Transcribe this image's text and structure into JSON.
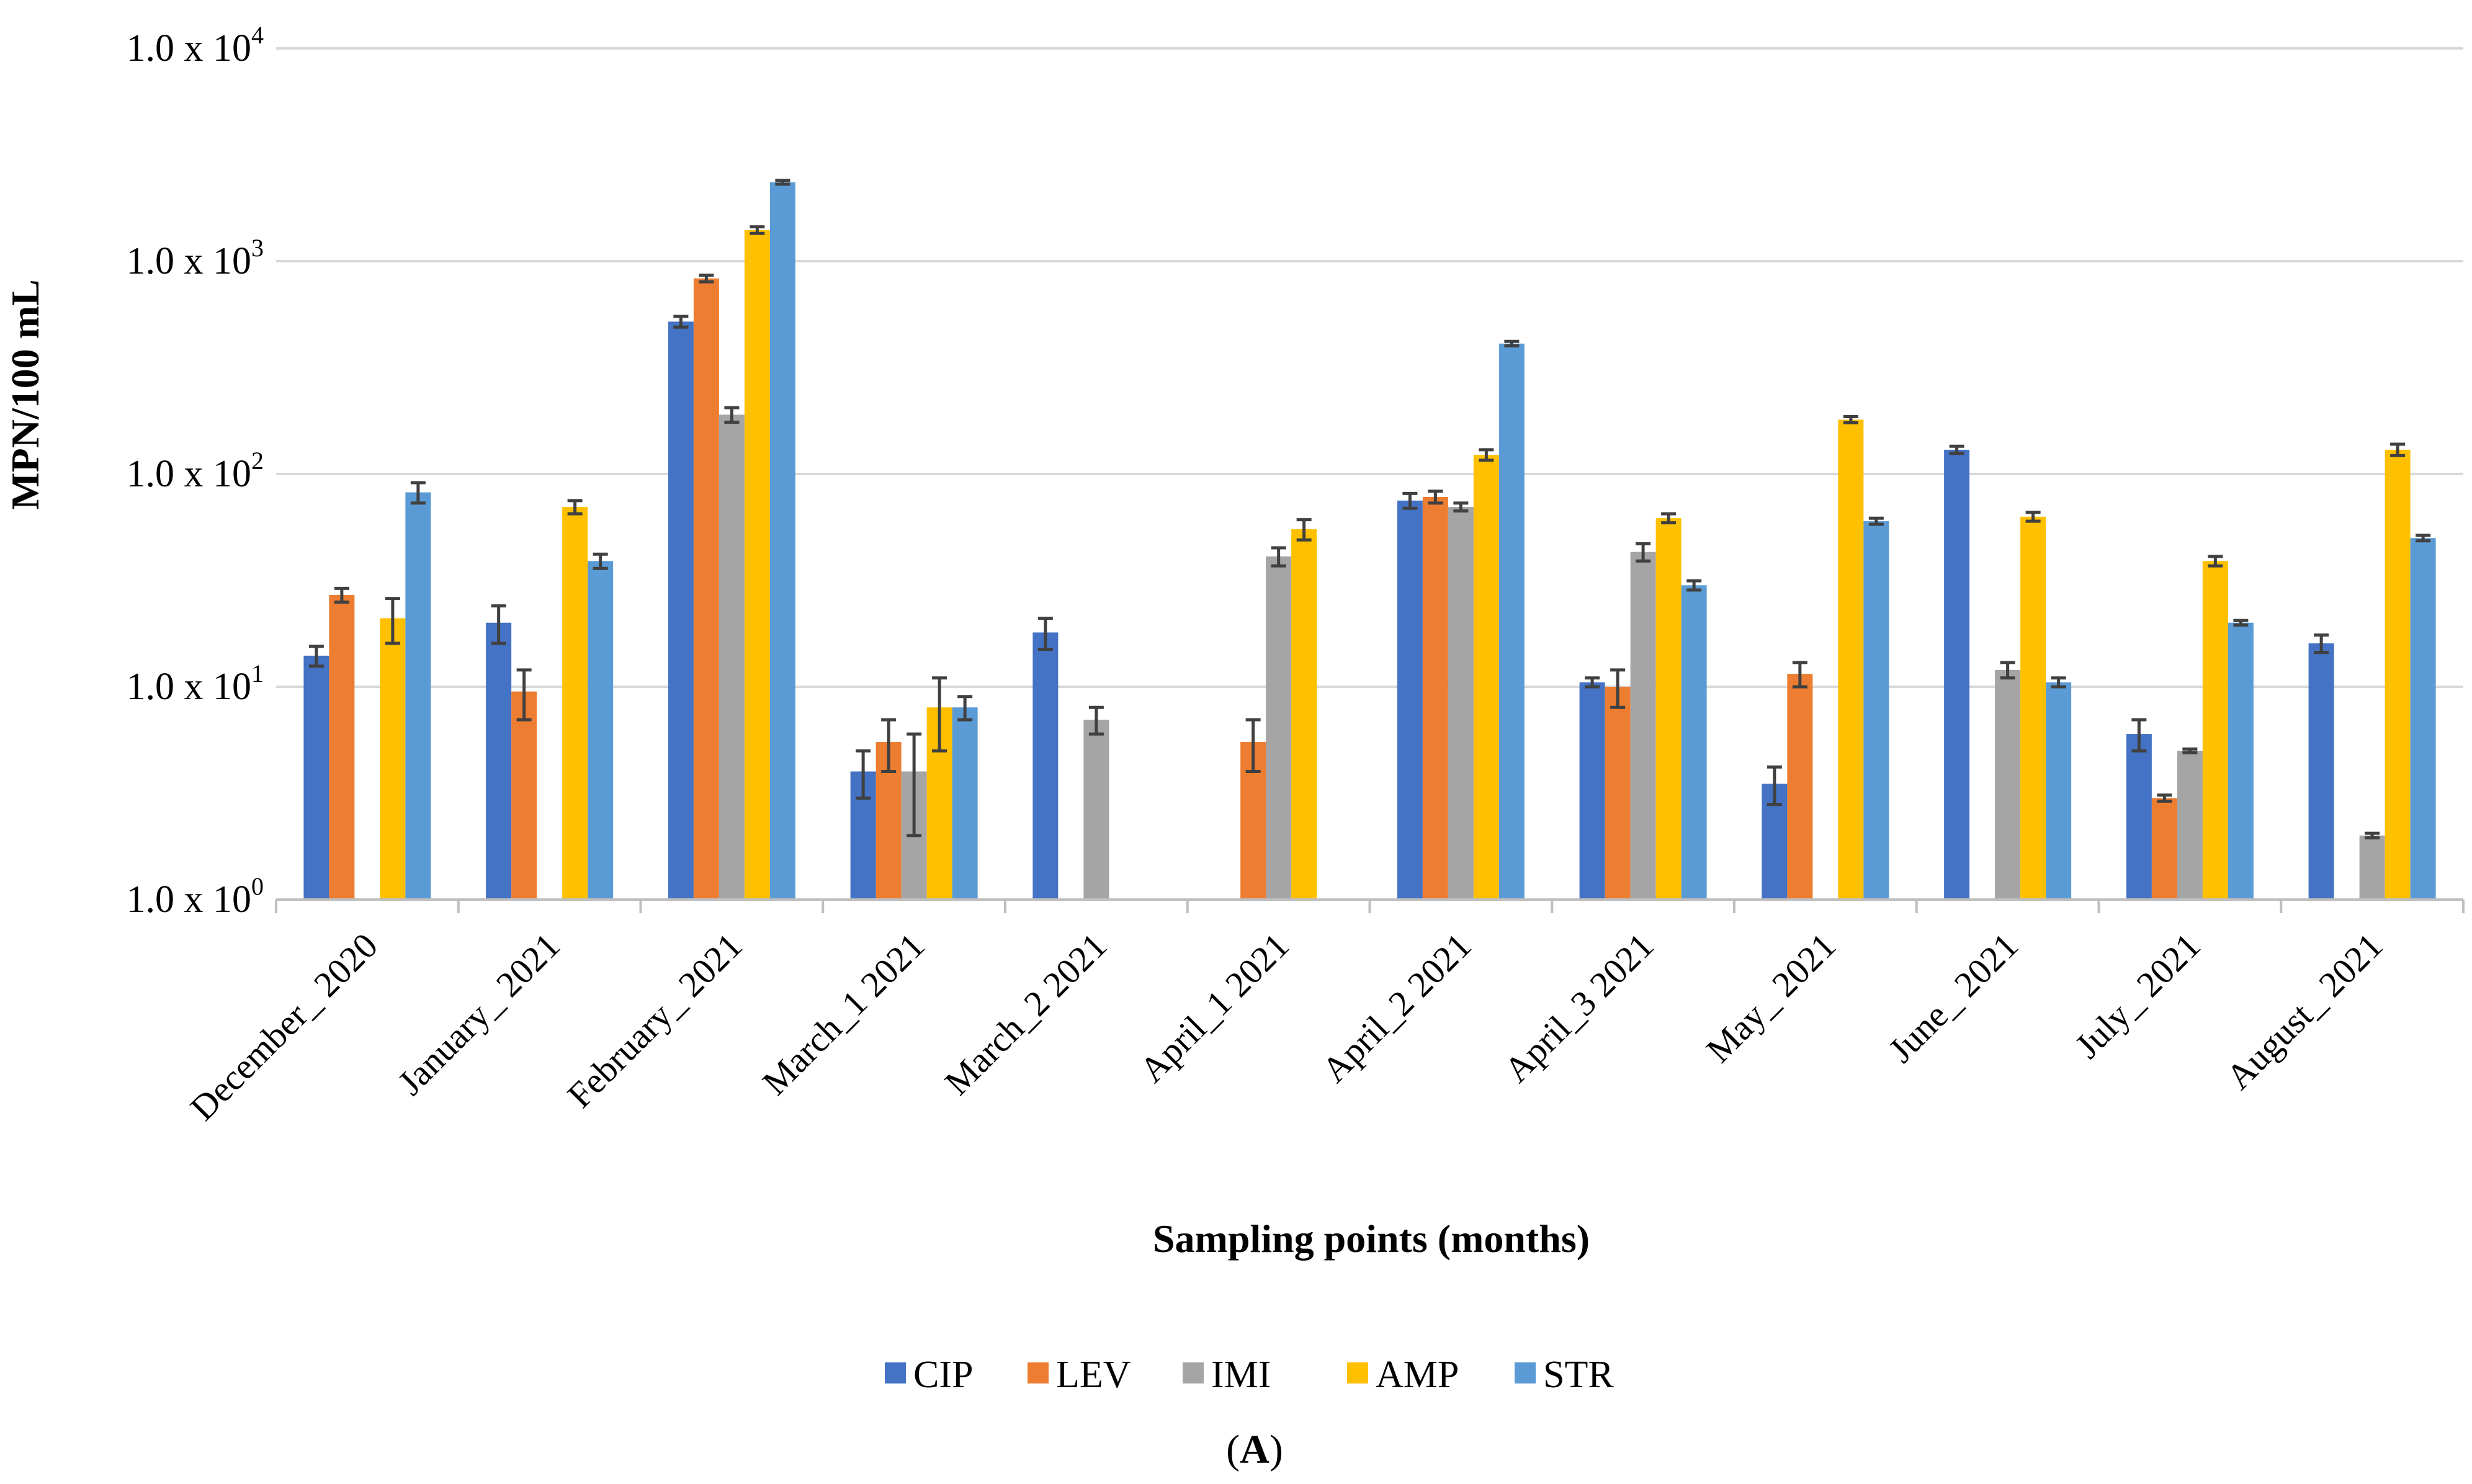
{
  "chart_data": {
    "type": "bar",
    "scale": "log",
    "ylim": [
      1,
      10000
    ],
    "xlabel": "Sampling points (months)",
    "ylabel": "MPN/100 mL",
    "panel_label": "A",
    "y_ticks": [
      {
        "value": 1,
        "base": "1.0 x 10",
        "exp": "0"
      },
      {
        "value": 10,
        "base": "1.0 x 10",
        "exp": "1"
      },
      {
        "value": 100,
        "base": "1.0 x 10",
        "exp": "2"
      },
      {
        "value": 1000,
        "base": "1.0 x 10",
        "exp": "3"
      },
      {
        "value": 10000,
        "base": "1.0 x 10",
        "exp": "4"
      }
    ],
    "categories": [
      "December_ 2020",
      "January_ 2021",
      "February_ 2021",
      "March_1 2021",
      "March_2 2021",
      "April_1 2021",
      "April_2 2021",
      "April_3 2021",
      "May_ 2021",
      "June_ 2021",
      "July_ 2021",
      "August_ 2021"
    ],
    "series": [
      {
        "name": "CIP",
        "color": "#4472c4",
        "values": [
          14,
          20,
          520,
          4,
          18,
          null,
          75,
          10.5,
          3.5,
          130,
          6,
          16
        ],
        "errors": [
          1.5,
          4,
          30,
          1,
          3,
          null,
          6,
          0.5,
          0.7,
          5,
          1,
          1.5
        ]
      },
      {
        "name": "LEV",
        "color": "#ed7d31",
        "values": [
          27,
          9.5,
          830,
          5.5,
          null,
          5.5,
          78,
          10,
          11.5,
          null,
          3,
          null
        ],
        "errors": [
          2,
          2.5,
          30,
          1.5,
          null,
          1.5,
          5,
          2,
          1.5,
          null,
          0.1,
          null
        ]
      },
      {
        "name": "IMI",
        "color": "#a5a5a5",
        "values": [
          null,
          null,
          190,
          4,
          7,
          41,
          70,
          43,
          null,
          12,
          5,
          2
        ],
        "errors": [
          null,
          null,
          15,
          2,
          1,
          4,
          3,
          4,
          null,
          1,
          0.1,
          0.05
        ]
      },
      {
        "name": "AMP",
        "color": "#ffc000",
        "values": [
          21,
          70,
          1400,
          8,
          null,
          55,
          123,
          62,
          180,
          63,
          39,
          130
        ],
        "errors": [
          5,
          5,
          50,
          3,
          null,
          6,
          7,
          3,
          6,
          3,
          2,
          8
        ]
      },
      {
        "name": "STR",
        "color": "#5b9bd5",
        "values": [
          82,
          39,
          2350,
          8,
          null,
          null,
          410,
          30,
          60,
          10.5,
          20,
          50
        ],
        "errors": [
          9,
          3,
          50,
          1,
          null,
          null,
          10,
          1.5,
          2,
          0.5,
          0.5,
          1.5
        ]
      }
    ]
  }
}
